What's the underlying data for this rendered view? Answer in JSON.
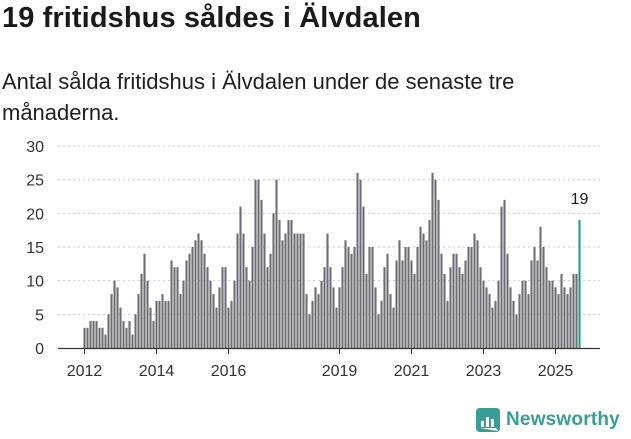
{
  "header": {
    "title": "19 fritidshus såldes i Älvdalen",
    "subtitle": "Antal sålda fritidshus i Älvdalen under de senaste tre månaderna."
  },
  "brand": {
    "name": "Newsworthy"
  },
  "colors": {
    "bar": "#6e6d72",
    "highlight": "#1b9e93",
    "grid": "#c9c9c9",
    "axis": "#333333",
    "brand": "#3a9e96"
  },
  "chart_data": {
    "type": "bar",
    "title": "Antal sålda fritidshus i Älvdalen under de senaste tre månaderna.",
    "xlabel": "",
    "ylabel": "",
    "ylim": [
      0,
      30
    ],
    "yticks": [
      0,
      5,
      10,
      15,
      20,
      25,
      30
    ],
    "grid": true,
    "x_start": "2012-01",
    "x_tick_labels": [
      {
        "label": "2012",
        "index": 0
      },
      {
        "label": "2014",
        "index": 24
      },
      {
        "label": "2016",
        "index": 48
      },
      {
        "label": "2019",
        "index": 85
      },
      {
        "label": "2021",
        "index": 109
      },
      {
        "label": "2023",
        "index": 133
      },
      {
        "label": "2025",
        "index": 157
      }
    ],
    "highlight_index": 165,
    "highlight_label": "19",
    "values": [
      3,
      3,
      4,
      4,
      4,
      3,
      3,
      2,
      5,
      8,
      10,
      9,
      6,
      4,
      3,
      4,
      2,
      5,
      8,
      11,
      14,
      10,
      6,
      4,
      7,
      7,
      8,
      7,
      7,
      13,
      12,
      12,
      8,
      10,
      13,
      14,
      15,
      16,
      17,
      16,
      14,
      12,
      10,
      8,
      6,
      9,
      12,
      12,
      6,
      7,
      10,
      17,
      21,
      17,
      12,
      10,
      15,
      25,
      25,
      22,
      17,
      12,
      14,
      20,
      25,
      19,
      16,
      17,
      19,
      19,
      17,
      17,
      17,
      17,
      8,
      5,
      7,
      9,
      8,
      10,
      12,
      17,
      12,
      9,
      6,
      9,
      12,
      16,
      15,
      14,
      15,
      26,
      25,
      21,
      11,
      15,
      15,
      9,
      5,
      7,
      12,
      14,
      8,
      6,
      13,
      16,
      13,
      15,
      15,
      13,
      11,
      15,
      18,
      17,
      16,
      19,
      26,
      25,
      22,
      14,
      11,
      7,
      12,
      14,
      14,
      12,
      11,
      13,
      15,
      15,
      17,
      16,
      12,
      10,
      9,
      8,
      6,
      7,
      10,
      21,
      22,
      14,
      9,
      7,
      5,
      8,
      10,
      10,
      8,
      13,
      15,
      13,
      18,
      15,
      12,
      10,
      10,
      9,
      8,
      11,
      9,
      8,
      9,
      11,
      11,
      19
    ]
  }
}
